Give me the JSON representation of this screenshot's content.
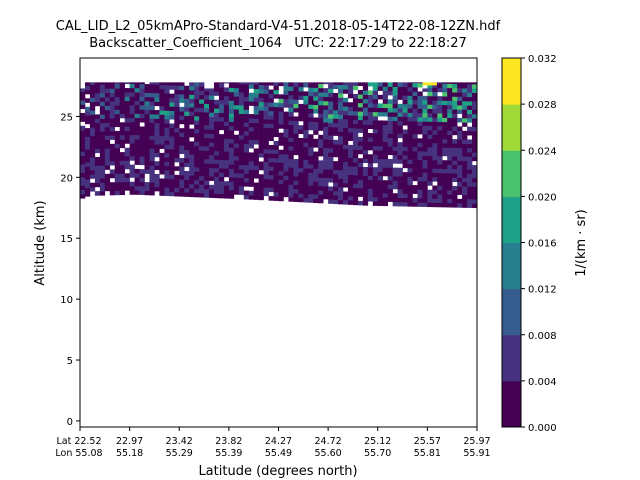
{
  "title": {
    "line1": "CAL_LID_L2_05kmAPro-Standard-V4-51.2018-05-14T22-08-12ZN.hdf",
    "line2": "Backscatter_Coefficient_1064   UTC: 22:17:29 to 22:18:27"
  },
  "chart_data": {
    "type": "heatmap",
    "title": "CAL_LID_L2_05kmAPro-Standard-V4-51.2018-05-14T22-08-12ZN.hdf Backscatter_Coefficient_1064   UTC: 22:17:29 to 22:18:27",
    "xlabel": "Latitude (degrees north)",
    "ylabel": "Altitude (km)",
    "colorbar_label": "1/(km · sr)",
    "x_tick_prefixes": [
      "Lat",
      "Lon"
    ],
    "x_ticks_lat": [
      "22.52",
      "22.97",
      "23.42",
      "23.82",
      "24.27",
      "24.72",
      "25.12",
      "25.57",
      "25.97"
    ],
    "x_ticks_lon": [
      "55.08",
      "55.18",
      "55.29",
      "55.39",
      "55.49",
      "55.60",
      "55.70",
      "55.81",
      "55.91"
    ],
    "y_ticks": [
      "0",
      "5",
      "10",
      "15",
      "20",
      "25"
    ],
    "ylim": [
      -0.5,
      29.8
    ],
    "xlim": [
      22.52,
      25.97
    ],
    "colorbar_ticks": [
      "0.000",
      "0.004",
      "0.008",
      "0.012",
      "0.016",
      "0.020",
      "0.024",
      "0.028",
      "0.032"
    ],
    "colorbar_range": [
      0.0,
      0.032
    ],
    "colormap_levels": [
      "#440154",
      "#46327e",
      "#365c8d",
      "#277f8e",
      "#1fa187",
      "#4ac16d",
      "#a0da39",
      "#fde725"
    ],
    "data_region": {
      "top_altitude_km": 27.8,
      "bottom_altitude_km_at_lat": [
        [
          22.52,
          18.2
        ],
        [
          22.6,
          18.5
        ],
        [
          23.0,
          18.6
        ],
        [
          24.0,
          18.2
        ],
        [
          25.0,
          17.7
        ],
        [
          25.97,
          17.5
        ]
      ],
      "typical_value_range": [
        0.0,
        0.006
      ],
      "enhanced_layer_altitude_km": [
        24.5,
        27.5
      ],
      "enhanced_layer_value_range": [
        0.008,
        0.024
      ],
      "max_value_observed": 0.03
    }
  }
}
